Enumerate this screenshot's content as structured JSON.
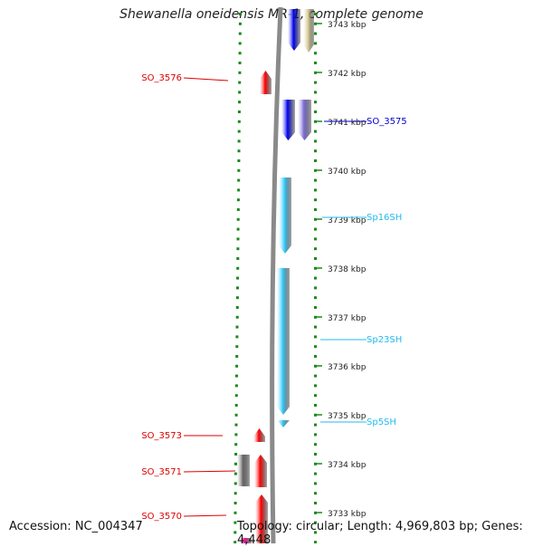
{
  "title": "Shewanella oneidensis MR-1, complete genome",
  "accession": "Accession: NC_004347",
  "topology": "Topology: circular; Length: 4,969,803 bp; Genes: 4,448",
  "kbp_ticks": [
    {
      "label": "3743 kbp"
    },
    {
      "label": "3742 kbp"
    },
    {
      "label": "3741 kbp"
    },
    {
      "label": "3740 kbp"
    },
    {
      "label": "3739 kbp"
    },
    {
      "label": "3738 kbp"
    },
    {
      "label": "3737 kbp"
    },
    {
      "label": "3736 kbp"
    },
    {
      "label": "3735 kbp"
    },
    {
      "label": "3734 kbp"
    },
    {
      "label": "3733 kbp"
    }
  ],
  "left_labels": [
    {
      "text": "SO_3576"
    },
    {
      "text": "SO_3573"
    },
    {
      "text": "SO_3571"
    },
    {
      "text": "SO_3570"
    }
  ],
  "right_labels": [
    {
      "text": "SO_3575"
    },
    {
      "text": "Sp16SH"
    },
    {
      "text": "Sp23SH"
    },
    {
      "text": "Sp5SH"
    }
  ],
  "colors": {
    "gene_red": "#ff0000",
    "gene_blue": "#0000ee",
    "gene_purple": "#7b6bd6",
    "gene_cyan": "#33ccff",
    "gene_gray": "#666666",
    "gene_tan": "#d8cc94",
    "gene_magenta": "#ee1199",
    "backbone": "#8a8a8a",
    "dots": "#1a8a1a",
    "label_red": "#dd0000",
    "label_blue": "#0000cc",
    "label_cyan": "#22bbee"
  }
}
